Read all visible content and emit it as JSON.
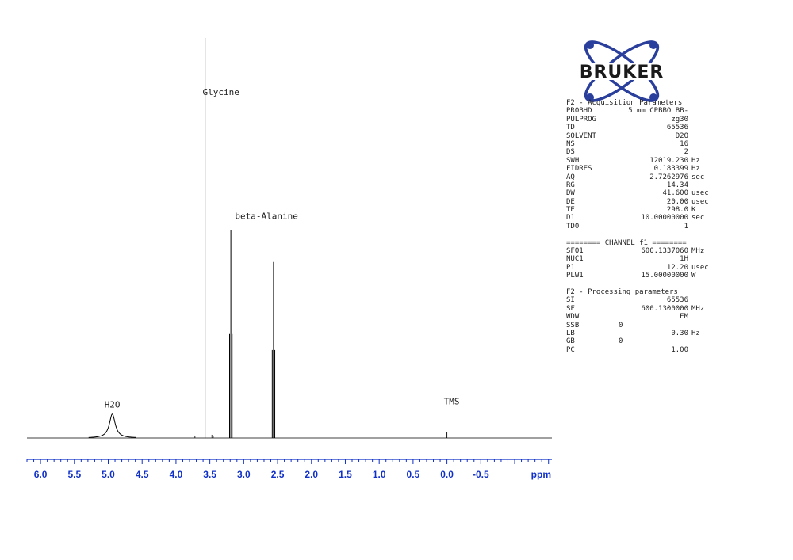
{
  "chart_data": {
    "type": "line",
    "title": "",
    "xlabel": "ppm",
    "ylabel": "",
    "x_reversed": true,
    "xlim": [
      6.2,
      -1.55
    ],
    "ticks": [
      "6.0",
      "5.5",
      "5.0",
      "4.5",
      "4.0",
      "3.5",
      "3.0",
      "2.5",
      "2.0",
      "1.5",
      "1.0",
      "0.5",
      "0.0",
      "-0.5"
    ],
    "tick_values": [
      6.0,
      5.5,
      5.0,
      4.5,
      4.0,
      3.5,
      3.0,
      2.5,
      2.0,
      1.5,
      1.0,
      0.5,
      0.0,
      -0.5
    ],
    "grid": false,
    "legend": "none",
    "peaks": [
      {
        "label": "H2O",
        "ppm": 4.94,
        "intensity": 0.06,
        "width": 0.07,
        "type": "broad"
      },
      {
        "label": "Glycine",
        "ppm": 3.57,
        "intensity": 1.0,
        "type": "singlet"
      },
      {
        "label": "beta-Alanine",
        "ppm": 3.19,
        "intensity": 0.52,
        "type": "triplet"
      },
      {
        "label": "",
        "ppm": 2.56,
        "intensity": 0.44,
        "type": "triplet"
      },
      {
        "label": "TMS",
        "ppm": 0.0,
        "intensity": 0.015,
        "type": "singlet"
      }
    ],
    "minor_peaks": [
      {
        "ppm": 3.72,
        "intensity": 0.006
      },
      {
        "ppm": 3.47,
        "intensity": 0.008
      },
      {
        "ppm": 3.45,
        "intensity": 0.006
      }
    ],
    "colors": {
      "spectrum": "#000000",
      "axis": "#1030c8"
    }
  },
  "logo": {
    "text": "BRUKER",
    "color_orbits": "#2a3f9c",
    "color_atom": "#2a3f9c"
  },
  "params": {
    "acq_header": "F2 - Acquisition Parameters",
    "acq": [
      {
        "k": "PROBHD",
        "v": "5 mm CPBBO BB-",
        "u": ""
      },
      {
        "k": "PULPROG",
        "v": "zg30",
        "u": ""
      },
      {
        "k": "TD",
        "v": "65536",
        "u": ""
      },
      {
        "k": "SOLVENT",
        "v": "D2O",
        "u": ""
      },
      {
        "k": "NS",
        "v": "16",
        "u": ""
      },
      {
        "k": "DS",
        "v": "2",
        "u": ""
      },
      {
        "k": "SWH",
        "v": "12019.230",
        "u": "Hz"
      },
      {
        "k": "FIDRES",
        "v": "0.183399",
        "u": "Hz"
      },
      {
        "k": "AQ",
        "v": "2.7262976",
        "u": "sec"
      },
      {
        "k": "RG",
        "v": "14.34",
        "u": ""
      },
      {
        "k": "DW",
        "v": "41.600",
        "u": "usec"
      },
      {
        "k": "DE",
        "v": "20.00",
        "u": "usec"
      },
      {
        "k": "TE",
        "v": "298.0",
        "u": "K"
      },
      {
        "k": "D1",
        "v": "10.00000000",
        "u": "sec"
      },
      {
        "k": "TD0",
        "v": "1",
        "u": ""
      }
    ],
    "chan_header": "======== CHANNEL f1 ========",
    "chan": [
      {
        "k": "SFO1",
        "v": "600.1337060",
        "u": "MHz"
      },
      {
        "k": "NUC1",
        "v": "1H",
        "u": ""
      },
      {
        "k": "P1",
        "v": "12.20",
        "u": "usec"
      },
      {
        "k": "PLW1",
        "v": "15.00000000",
        "u": "W"
      }
    ],
    "proc_header": "F2 - Processing parameters",
    "proc": [
      {
        "k": "SI",
        "v": "65536",
        "u": ""
      },
      {
        "k": "SF",
        "v": "600.1300000",
        "u": "MHz"
      },
      {
        "k": "WDW",
        "v": "EM",
        "u": ""
      },
      {
        "k": "SSB",
        "v": "0",
        "u": "",
        "left": true
      },
      {
        "k": "LB",
        "v": "0.30",
        "u": "Hz"
      },
      {
        "k": "GB",
        "v": "0",
        "u": "",
        "left": true
      },
      {
        "k": "PC",
        "v": "1.00",
        "u": ""
      }
    ]
  }
}
